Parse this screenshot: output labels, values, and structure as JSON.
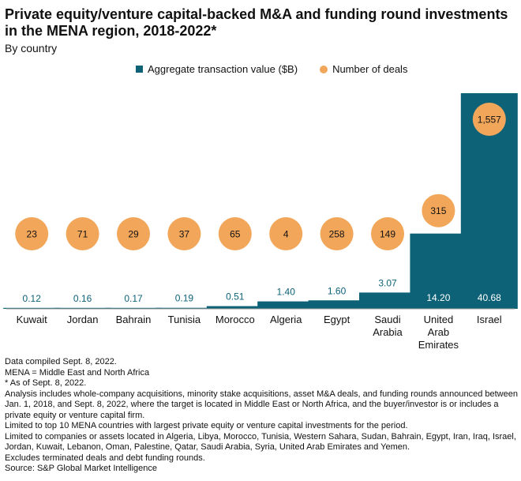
{
  "title": "Private equity/venture capital-backed M&A and funding round investments in the MENA region, 2018-2022*",
  "subtitle": "By country",
  "colors": {
    "bar": "#0d6278",
    "dot": "#f2a65a",
    "axis": "#999999"
  },
  "chart_data": {
    "type": "bar",
    "categories": [
      "Kuwait",
      "Jordan",
      "Bahrain",
      "Tunisia",
      "Morocco",
      "Algeria",
      "Egypt",
      "Saudi Arabia",
      "United Arab Emirates",
      "Israel"
    ],
    "series": [
      {
        "name": "Aggregate transaction value ($B)",
        "kind": "bar",
        "values": [
          0.12,
          0.16,
          0.17,
          0.19,
          0.51,
          1.4,
          1.6,
          3.07,
          14.2,
          40.68
        ],
        "labels": [
          "0.12",
          "0.16",
          "0.17",
          "0.19",
          "0.51",
          "1.40",
          "1.60",
          "3.07",
          "14.20",
          "40.68"
        ]
      },
      {
        "name": "Number of deals",
        "kind": "dot",
        "values": [
          23,
          71,
          29,
          37,
          65,
          4,
          258,
          149,
          315,
          1557
        ],
        "labels": [
          "23",
          "71",
          "29",
          "37",
          "65",
          "4",
          "258",
          "149",
          "315",
          "1,557"
        ]
      }
    ],
    "category_lines": [
      [
        "Kuwait"
      ],
      [
        "Jordan"
      ],
      [
        "Bahrain"
      ],
      [
        "Tunisia"
      ],
      [
        "Morocco"
      ],
      [
        "Algeria"
      ],
      [
        "Egypt"
      ],
      [
        "Saudi",
        "Arabia"
      ],
      [
        "United",
        "Arab",
        "Emirates"
      ],
      [
        "Israel"
      ]
    ],
    "legend_position": "top",
    "grid": false
  },
  "notes": [
    "Data compiled Sept. 8, 2022.",
    "MENA = Middle East and North Africa",
    "* As of Sept. 8, 2022.",
    "Analysis includes whole-company acquisitions, minority stake acquisitions, asset M&A deals, and funding rounds announced between Jan. 1, 2018, and Sept. 8, 2022, where the target is located in Middle East or North Africa, and the buyer/investor is or includes a private equity or venture capital firm.",
    "Limited to top 10 MENA countries with largest private equity or venture capital investments for the period.",
    "Limited to companies or assets located in Algeria, Libya, Morocco, Tunisia, Western Sahara, Sudan, Bahrain, Egypt, Iran, Iraq, Israel, Jordan, Kuwait, Lebanon, Oman, Palestine, Qatar, Saudi Arabia, Syria, United Arab Emirates and Yemen.",
    "Excludes terminated deals and debt funding rounds.",
    "Source: S&P Global Market Intelligence"
  ]
}
